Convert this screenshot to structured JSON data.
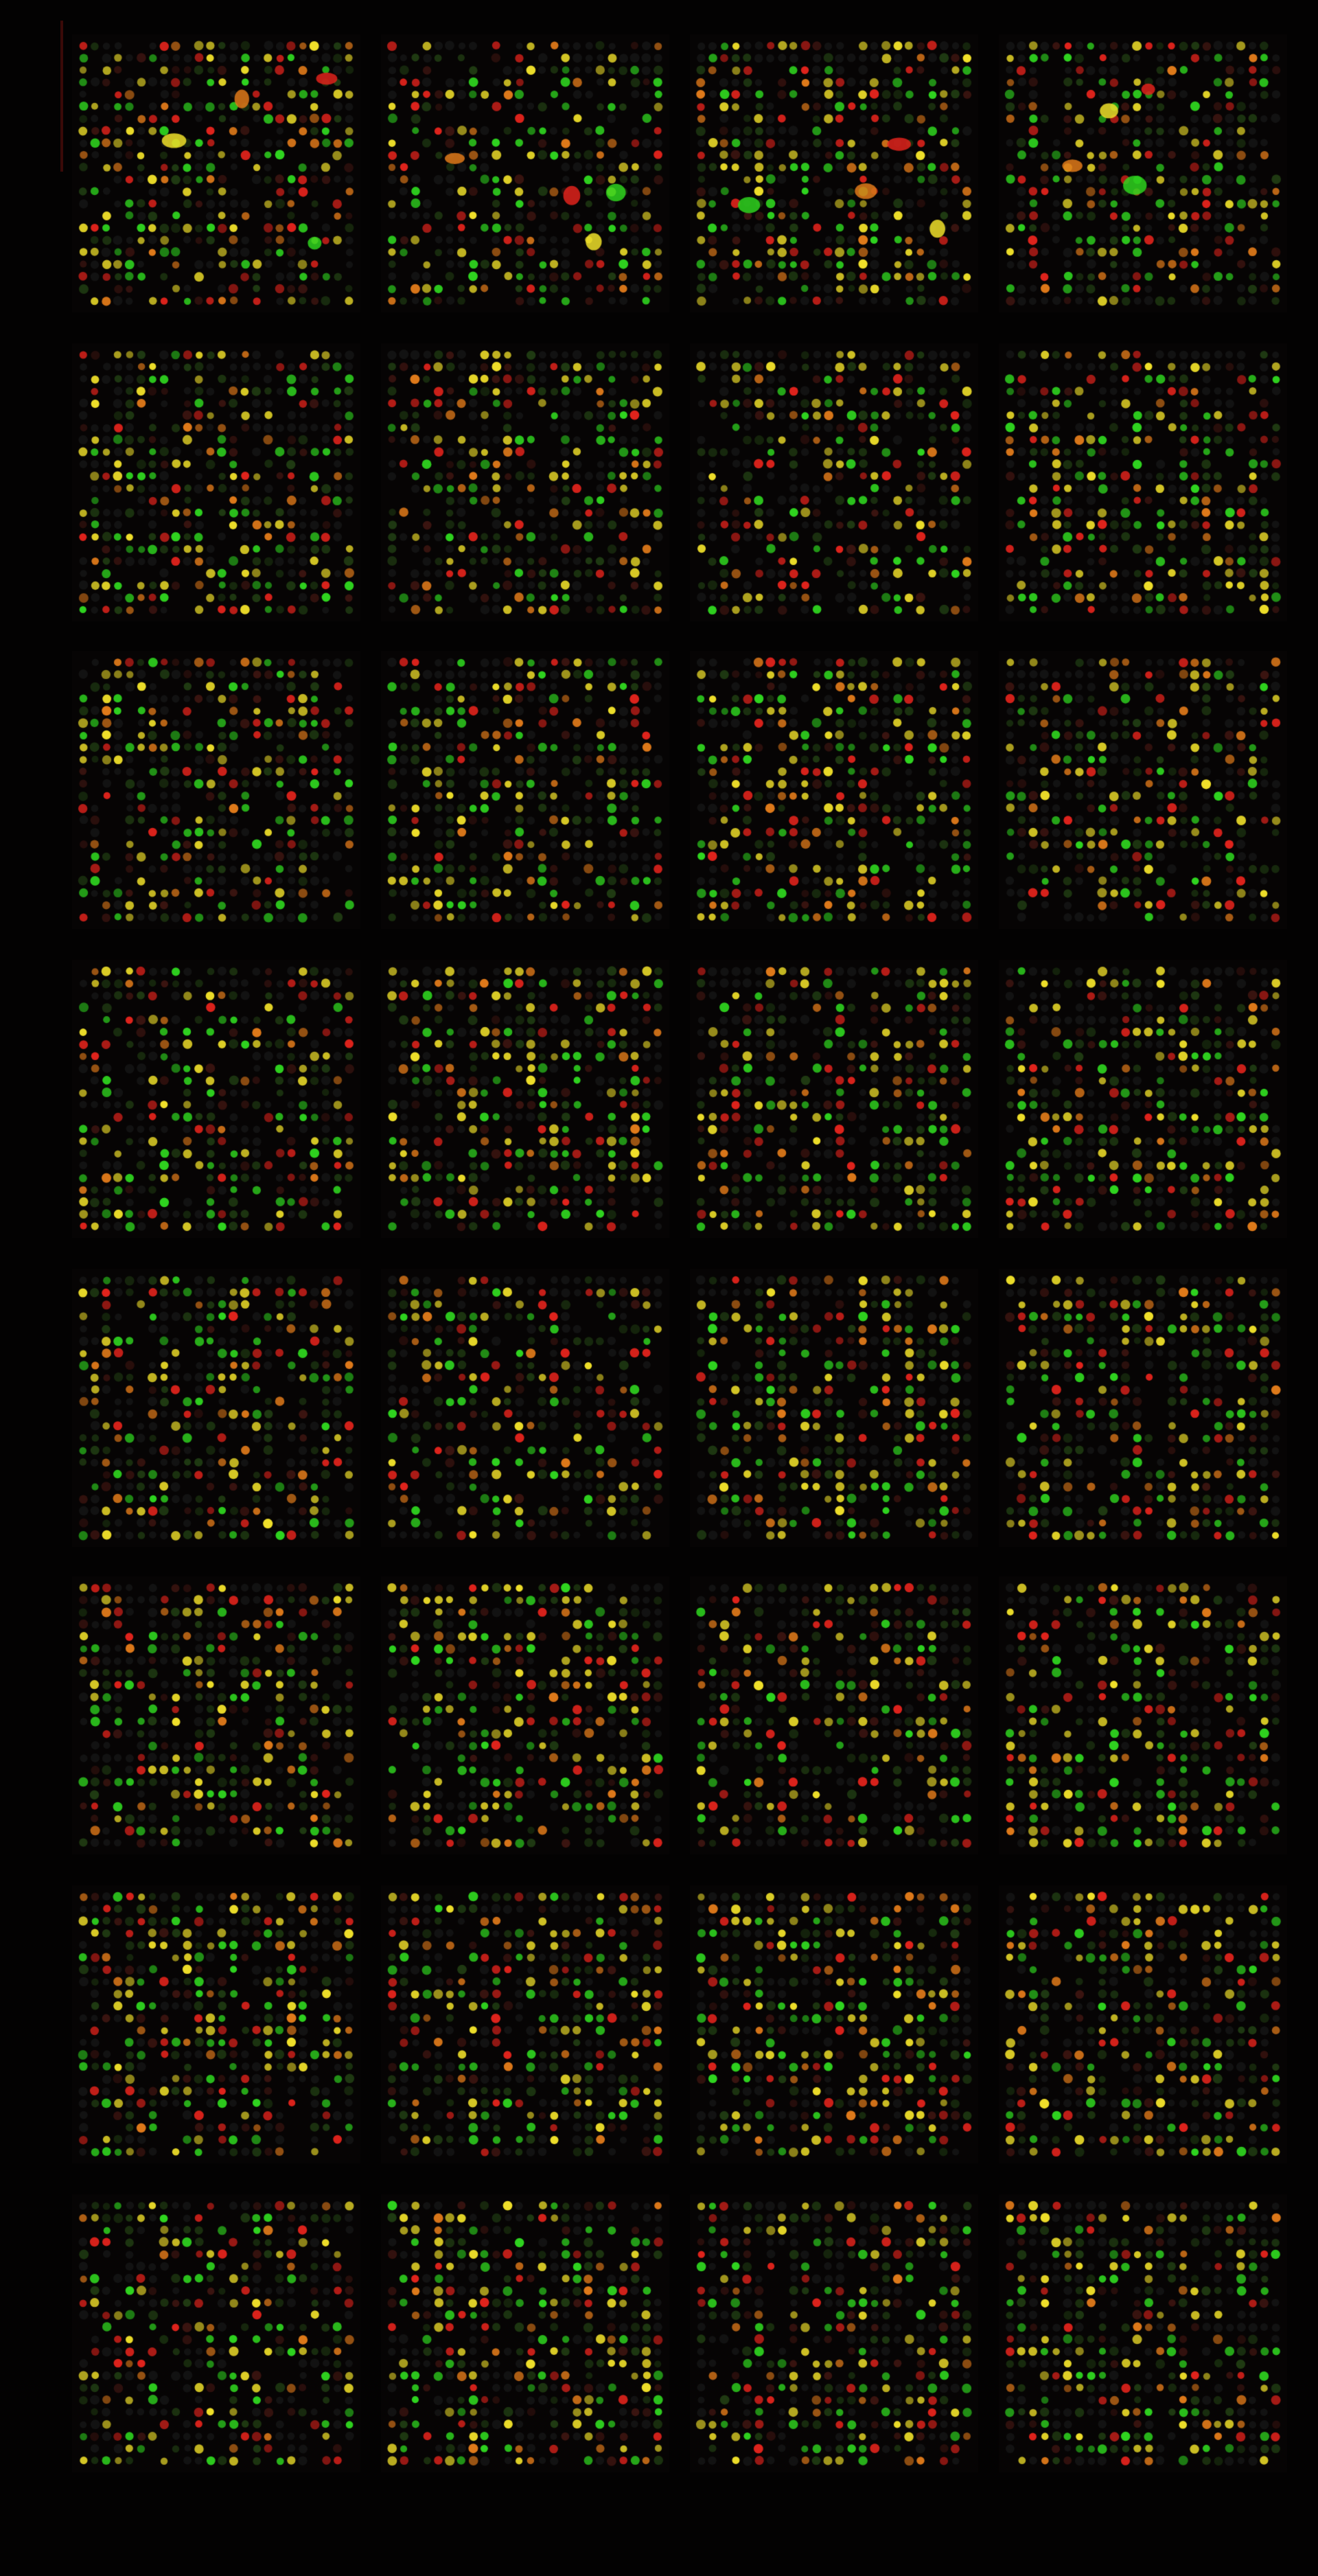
{
  "image": {
    "kind": "two-color microarray scan",
    "background_color": "#030202",
    "channel_colors": {
      "red": "#e0231c",
      "green": "#2fd41f",
      "yellow": "#f0e02a",
      "orange": "#e07a1a",
      "dim_green": "#1f3a12",
      "dim_red": "#3a1410",
      "dark_spot": "#141414"
    }
  },
  "array": {
    "block_columns": 4,
    "block_rows": 8,
    "spots_per_block_row": 24,
    "spot_rows_per_block": 22
  }
}
